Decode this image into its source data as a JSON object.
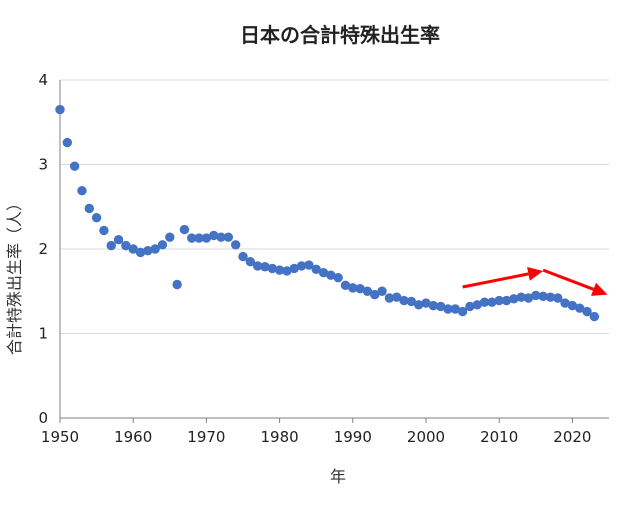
{
  "chart_data": {
    "type": "scatter",
    "title": "日本の合計特殊出生率",
    "xlabel": "年",
    "ylabel": "合計特殊出生率（人）",
    "xlim": [
      1950,
      2025
    ],
    "ylim": [
      0,
      4
    ],
    "x_ticks": [
      "1950",
      "1960",
      "1970",
      "1980",
      "1990",
      "2000",
      "2010",
      "2020"
    ],
    "y_ticks": [
      "0",
      "1",
      "2",
      "3",
      "4"
    ],
    "grid": "horizontal",
    "marker_color": "#4472C4",
    "arrow_color": "#FF0000",
    "series": [
      {
        "x": [
          1950,
          1951,
          1952,
          1953,
          1954,
          1955,
          1956,
          1957,
          1958,
          1959,
          1960,
          1961,
          1962,
          1963,
          1964,
          1965,
          1966,
          1967,
          1968,
          1969,
          1970,
          1971,
          1972,
          1973,
          1974,
          1975,
          1976,
          1977,
          1978,
          1979,
          1980,
          1981,
          1982,
          1983,
          1984,
          1985,
          1986,
          1987,
          1988,
          1989,
          1990,
          1991,
          1992,
          1993,
          1994,
          1995,
          1996,
          1997,
          1998,
          1999,
          2000,
          2001,
          2002,
          2003,
          2004,
          2005,
          2006,
          2007,
          2008,
          2009,
          2010,
          2011,
          2012,
          2013,
          2014,
          2015,
          2016,
          2017,
          2018,
          2019,
          2020,
          2021,
          2022,
          2023
        ],
        "values": [
          3.65,
          3.26,
          2.98,
          2.69,
          2.48,
          2.37,
          2.22,
          2.04,
          2.11,
          2.04,
          2.0,
          1.96,
          1.98,
          2.0,
          2.05,
          2.14,
          1.58,
          2.23,
          2.13,
          2.13,
          2.13,
          2.16,
          2.14,
          2.14,
          2.05,
          1.91,
          1.85,
          1.8,
          1.79,
          1.77,
          1.75,
          1.74,
          1.77,
          1.8,
          1.81,
          1.76,
          1.72,
          1.69,
          1.66,
          1.57,
          1.54,
          1.53,
          1.5,
          1.46,
          1.5,
          1.42,
          1.43,
          1.39,
          1.38,
          1.34,
          1.36,
          1.33,
          1.32,
          1.29,
          1.29,
          1.26,
          1.32,
          1.34,
          1.37,
          1.37,
          1.39,
          1.39,
          1.41,
          1.43,
          1.42,
          1.45,
          1.44,
          1.43,
          1.42,
          1.36,
          1.33,
          1.3,
          1.26,
          1.2
        ]
      }
    ],
    "annotations": [
      {
        "type": "arrow",
        "from": [
          2005,
          1.55
        ],
        "to": [
          2016,
          1.74
        ]
      },
      {
        "type": "arrow",
        "from": [
          2016,
          1.75
        ],
        "to": [
          2024.8,
          1.46
        ]
      }
    ]
  }
}
